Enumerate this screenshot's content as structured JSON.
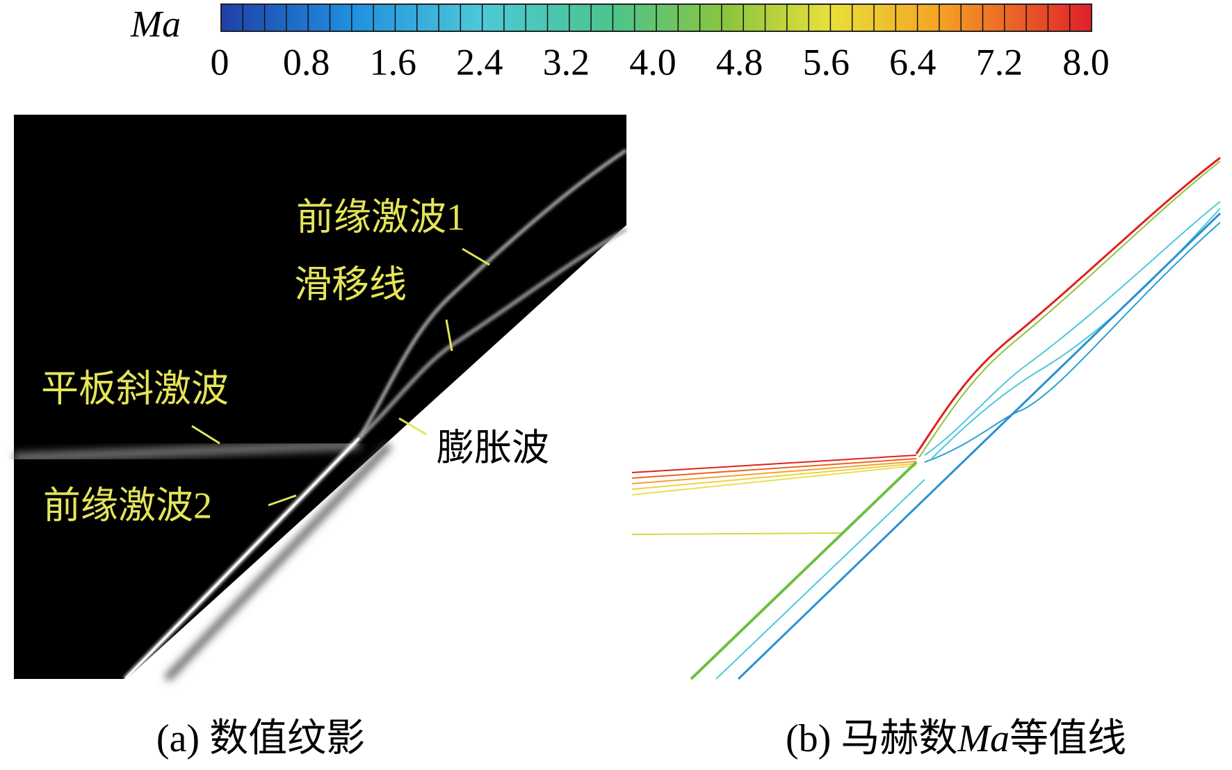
{
  "colorbar": {
    "label": "Ma",
    "ticks": [
      "0",
      "0.8",
      "1.6",
      "2.4",
      "3.2",
      "4.0",
      "4.8",
      "5.6",
      "6.4",
      "7.2",
      "8.0"
    ]
  },
  "panel_a": {
    "annotations": [
      "前缘激波1",
      "滑移线",
      "平板斜激波",
      "膨胀波",
      "前缘激波2"
    ],
    "caption": "(a) 数值纹影"
  },
  "panel_b": {
    "caption_parts": [
      "(b) 马赫数",
      "Ma",
      "等值线"
    ]
  }
}
